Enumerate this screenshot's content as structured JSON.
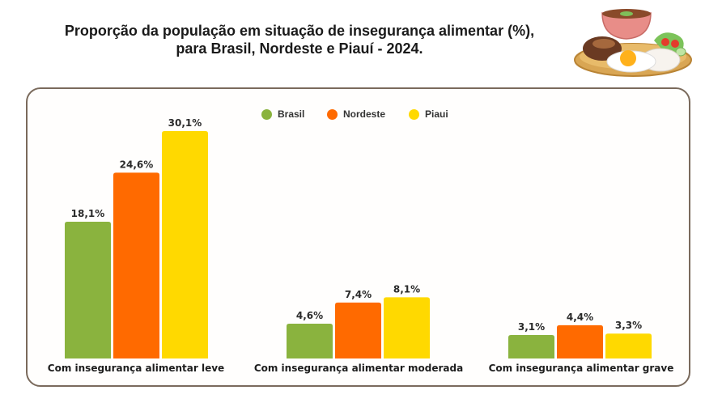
{
  "title": {
    "line1": "Proporção da população em situação de insegurança alimentar (%),",
    "line2": "para Brasil, Nordeste e Piauí - 2024."
  },
  "illustration": {
    "icon": "food-plate-icon"
  },
  "colors": {
    "brasil": "#8AB33E",
    "nordeste": "#FF6A00",
    "piaui": "#FFD900",
    "border": "#7a6a5c"
  },
  "legend": [
    {
      "label": "Brasil",
      "color": "#8AB33E"
    },
    {
      "label": "Nordeste",
      "color": "#FF6A00"
    },
    {
      "label": "Piaui",
      "color": "#FFD900"
    }
  ],
  "chart_data": {
    "type": "bar",
    "title": "Proporção da população em situação de insegurança alimentar (%), para Brasil, Nordeste e Piauí - 2024.",
    "xlabel": "",
    "ylabel": "",
    "ylim": [
      0,
      30.1
    ],
    "grid": false,
    "legend_position": "top-center",
    "categories": [
      "Com insegurança alimentar leve",
      "Com insegurança alimentar moderada",
      "Com insegurança alimentar grave"
    ],
    "series": [
      {
        "name": "Brasil",
        "color": "#8AB33E",
        "values": [
          18.1,
          4.6,
          3.1
        ],
        "labels": [
          "18,1%",
          "4,6%",
          "3,1%"
        ]
      },
      {
        "name": "Nordeste",
        "color": "#FF6A00",
        "values": [
          24.6,
          7.4,
          4.4
        ],
        "labels": [
          "24,6%",
          "7,4%",
          "4,4%"
        ]
      },
      {
        "name": "Piaui",
        "color": "#FFD900",
        "values": [
          30.1,
          8.1,
          3.3
        ],
        "labels": [
          "30,1%",
          "8,1%",
          "3,3%"
        ]
      }
    ]
  }
}
